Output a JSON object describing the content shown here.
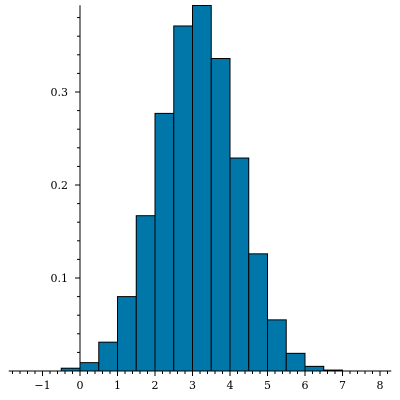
{
  "chart_data": {
    "type": "bar",
    "title": "",
    "xlabel": "",
    "ylabel": "",
    "bar_color": "#0077a8",
    "bar_edge_color": "#000000",
    "bin_width": 0.5,
    "bins": [
      {
        "left": -0.5,
        "value": 0.003
      },
      {
        "left": 0.0,
        "value": 0.009
      },
      {
        "left": 0.5,
        "value": 0.031
      },
      {
        "left": 1.0,
        "value": 0.08
      },
      {
        "left": 1.5,
        "value": 0.167
      },
      {
        "left": 2.0,
        "value": 0.277
      },
      {
        "left": 2.5,
        "value": 0.371
      },
      {
        "left": 3.0,
        "value": 0.393
      },
      {
        "left": 3.5,
        "value": 0.336
      },
      {
        "left": 4.0,
        "value": 0.229
      },
      {
        "left": 4.5,
        "value": 0.126
      },
      {
        "left": 5.0,
        "value": 0.055
      },
      {
        "left": 5.5,
        "value": 0.019
      },
      {
        "left": 6.0,
        "value": 0.005
      },
      {
        "left": 6.5,
        "value": 0.001
      }
    ],
    "xlim": [
      -1.9,
      8.3
    ],
    "ylim": [
      0,
      0.39
    ],
    "x_ticks": [
      -1,
      0,
      1,
      2,
      3,
      4,
      5,
      6,
      7,
      8
    ],
    "x_tick_labels": [
      "−1",
      "0",
      "1",
      "2",
      "3",
      "4",
      "5",
      "6",
      "7",
      "8"
    ],
    "y_ticks": [
      0.1,
      0.2,
      0.3
    ],
    "y_tick_labels": [
      "0.1",
      "0.2",
      "0.3"
    ],
    "grid": false,
    "legend": "none"
  }
}
